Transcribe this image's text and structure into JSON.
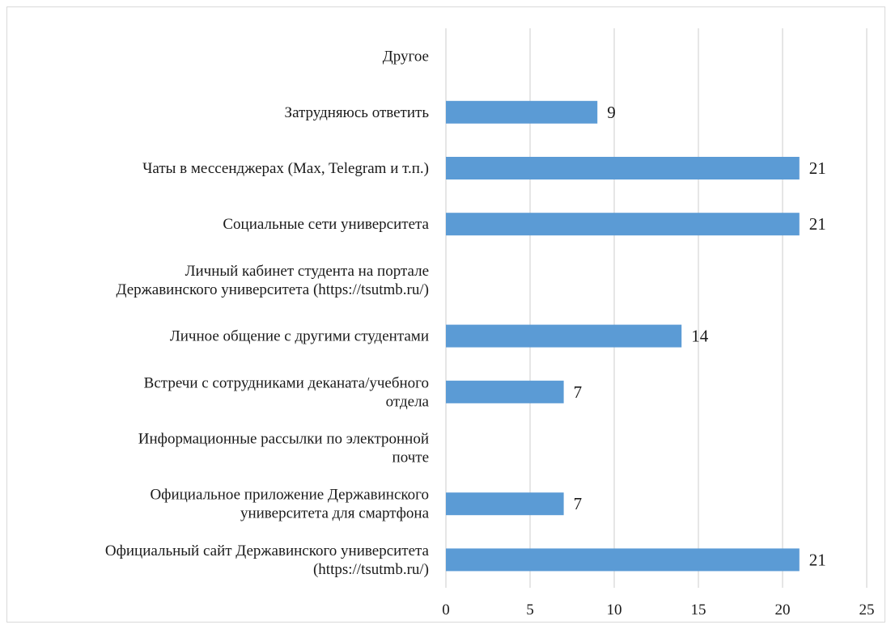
{
  "chart_data": {
    "type": "bar",
    "orientation": "horizontal",
    "categories": [
      [
        "Другое"
      ],
      [
        "Затрудняюсь ответить"
      ],
      [
        "Чаты в мессенджерах (Max, Telegram и т.п.)"
      ],
      [
        "Социальные сети университета"
      ],
      [
        "Личный кабинет студента на портале",
        "Державинского университета (https://tsutmb.ru/)"
      ],
      [
        "Личное общение с другими студентами"
      ],
      [
        "Встречи с сотрудниками деканата/учебного",
        "отдела"
      ],
      [
        "Информационные рассылки по электронной",
        "почте"
      ],
      [
        "Официальное приложение Державинского",
        "университета для смартфона"
      ],
      [
        "Официальный сайт Державинского университета",
        "(https://tsutmb.ru/)"
      ]
    ],
    "values": [
      null,
      9,
      21,
      21,
      null,
      14,
      7,
      null,
      7,
      21
    ],
    "data_labels": [
      "",
      "9",
      "21",
      "21",
      "",
      "14",
      "7",
      "",
      "7",
      "21"
    ],
    "xlim": [
      0,
      25
    ],
    "x_ticks": [
      "0",
      "5",
      "10",
      "15",
      "20",
      "25"
    ],
    "grid": "vertical",
    "bar_color": "#5b9bd5",
    "grid_color": "#d9d9d9",
    "legend": "none"
  }
}
